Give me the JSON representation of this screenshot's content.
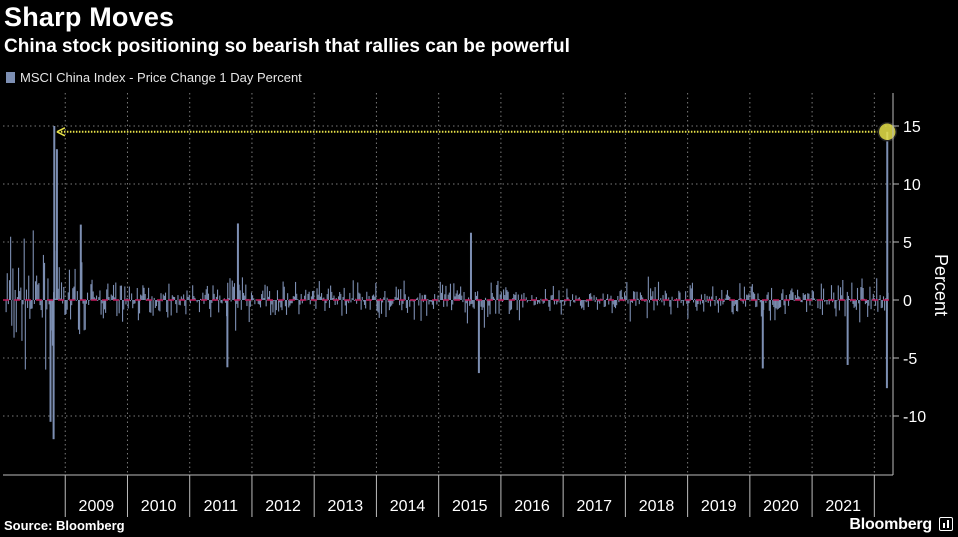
{
  "header": {
    "title": "Sharp Moves",
    "subtitle": "China stock positioning so bearish that rallies can be powerful"
  },
  "legend": {
    "label": "MSCI China Index - Price Change 1 Day Percent",
    "color": "#7d8fb3"
  },
  "footer": {
    "source": "Source: Bloomberg",
    "brand": "Bloomberg"
  },
  "colors": {
    "background": "#000000",
    "series": "#7d8fb3",
    "zero_line": "#c2185b",
    "highlight": "#e8e34a"
  },
  "chart_data": {
    "type": "bar",
    "title": "Sharp Moves",
    "subtitle": "China stock positioning so bearish that rallies can be powerful",
    "ylabel": "Percent",
    "xlabel": "",
    "ylim": [
      -15,
      18
    ],
    "yticks": [
      -10,
      -5,
      0,
      5,
      10,
      15
    ],
    "ytick_labels": [
      "-10",
      "-5",
      "0",
      "5",
      "10",
      "15"
    ],
    "x_range": [
      2008.0,
      2022.3
    ],
    "x_tick_labels": [
      "2009",
      "2010",
      "2011",
      "2012",
      "2013",
      "2014",
      "2015",
      "2016",
      "2017",
      "2018",
      "2019",
      "2020",
      "2021"
    ],
    "x_tick_years": [
      2009,
      2010,
      2011,
      2012,
      2013,
      2014,
      2015,
      2016,
      2017,
      2018,
      2019,
      2020,
      2021
    ],
    "grid": true,
    "legend_position": "top-left",
    "series": [
      {
        "name": "MSCI China Index - Price Change 1 Day Percent",
        "note_points": [
          {
            "date": "2008-10-28",
            "value": 15.0
          },
          {
            "date": "2008-11-13",
            "value": 13.0
          },
          {
            "date": "2008-10-24",
            "value": -12.0
          },
          {
            "date": "2008-10-06",
            "value": -10.5
          },
          {
            "date": "2009-04-01",
            "value": 6.5
          },
          {
            "date": "2011-10-10",
            "value": 6.6
          },
          {
            "date": "2011-08-09",
            "value": -5.8
          },
          {
            "date": "2015-07-08",
            "value": 5.8
          },
          {
            "date": "2015-08-24",
            "value": -6.3
          },
          {
            "date": "2020-03-16",
            "value": -5.9
          },
          {
            "date": "2021-07-27",
            "value": -5.6
          },
          {
            "date": "2022-03-14",
            "value": -7.6
          },
          {
            "date": "2022-03-16",
            "value": 14.5
          }
        ]
      }
    ],
    "annotation": {
      "type": "horizontal-arrow",
      "value": 14.5,
      "from_date": "2022-03-16",
      "to_date": "2008-11-13",
      "marker": "circle"
    }
  }
}
